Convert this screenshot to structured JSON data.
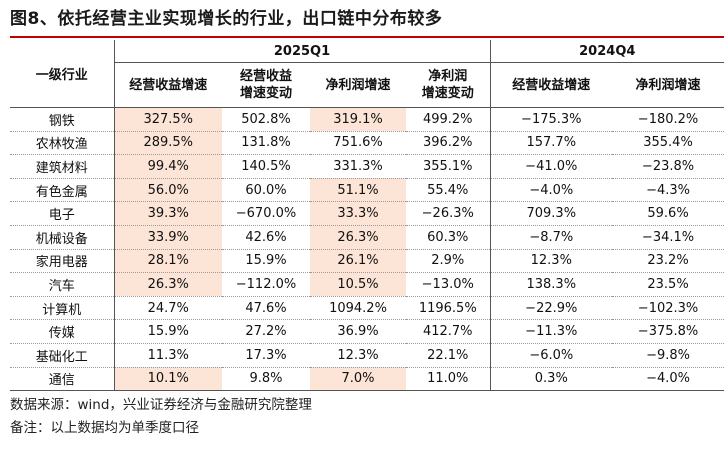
{
  "title": "图8、依托经营主业实现增长的行业，出口链中分布较多",
  "table": {
    "industry_header": "一级行业",
    "periods": [
      "2025Q1",
      "2024Q4"
    ],
    "columns_2025q1": [
      "经营收益增速",
      "经营收益增速变动",
      "净利润增速",
      "净利润增速变动"
    ],
    "columns_2025q1_lines": [
      [
        "经营收益增速"
      ],
      [
        "经营收益",
        "增速变动"
      ],
      [
        "净利润增速"
      ],
      [
        "净利润",
        "增速变动"
      ]
    ],
    "columns_2024q4": [
      "经营收益增速",
      "净利润增速"
    ],
    "highlight_color": "#fce4d6",
    "rows": [
      {
        "industry": "钢铁",
        "q1_rev": "327.5%",
        "q1_rev_chg": "502.8%",
        "q1_np": "319.1%",
        "q1_np_chg": "499.2%",
        "q4_rev": "−175.3%",
        "q4_np": "−180.2%",
        "hl_rev": true,
        "hl_np": true
      },
      {
        "industry": "农林牧渔",
        "q1_rev": "289.5%",
        "q1_rev_chg": "131.8%",
        "q1_np": "751.6%",
        "q1_np_chg": "396.2%",
        "q4_rev": "157.7%",
        "q4_np": "355.4%",
        "hl_rev": true,
        "hl_np": false
      },
      {
        "industry": "建筑材料",
        "q1_rev": "99.4%",
        "q1_rev_chg": "140.5%",
        "q1_np": "331.3%",
        "q1_np_chg": "355.1%",
        "q4_rev": "−41.0%",
        "q4_np": "−23.8%",
        "hl_rev": true,
        "hl_np": false
      },
      {
        "industry": "有色金属",
        "q1_rev": "56.0%",
        "q1_rev_chg": "60.0%",
        "q1_np": "51.1%",
        "q1_np_chg": "55.4%",
        "q4_rev": "−4.0%",
        "q4_np": "−4.3%",
        "hl_rev": true,
        "hl_np": true
      },
      {
        "industry": "电子",
        "q1_rev": "39.3%",
        "q1_rev_chg": "−670.0%",
        "q1_np": "33.3%",
        "q1_np_chg": "−26.3%",
        "q4_rev": "709.3%",
        "q4_np": "59.6%",
        "hl_rev": true,
        "hl_np": true
      },
      {
        "industry": "机械设备",
        "q1_rev": "33.9%",
        "q1_rev_chg": "42.6%",
        "q1_np": "26.3%",
        "q1_np_chg": "60.3%",
        "q4_rev": "−8.7%",
        "q4_np": "−34.1%",
        "hl_rev": true,
        "hl_np": true
      },
      {
        "industry": "家用电器",
        "q1_rev": "28.1%",
        "q1_rev_chg": "15.9%",
        "q1_np": "26.1%",
        "q1_np_chg": "2.9%",
        "q4_rev": "12.3%",
        "q4_np": "23.2%",
        "hl_rev": true,
        "hl_np": true
      },
      {
        "industry": "汽车",
        "q1_rev": "26.3%",
        "q1_rev_chg": "−112.0%",
        "q1_np": "10.5%",
        "q1_np_chg": "−13.0%",
        "q4_rev": "138.3%",
        "q4_np": "23.5%",
        "hl_rev": true,
        "hl_np": true
      },
      {
        "industry": "计算机",
        "q1_rev": "24.7%",
        "q1_rev_chg": "47.6%",
        "q1_np": "1094.2%",
        "q1_np_chg": "1196.5%",
        "q4_rev": "−22.9%",
        "q4_np": "−102.3%",
        "hl_rev": false,
        "hl_np": false
      },
      {
        "industry": "传媒",
        "q1_rev": "15.9%",
        "q1_rev_chg": "27.2%",
        "q1_np": "36.9%",
        "q1_np_chg": "412.7%",
        "q4_rev": "−11.3%",
        "q4_np": "−375.8%",
        "hl_rev": false,
        "hl_np": false
      },
      {
        "industry": "基础化工",
        "q1_rev": "11.3%",
        "q1_rev_chg": "17.3%",
        "q1_np": "12.3%",
        "q1_np_chg": "22.1%",
        "q4_rev": "−6.0%",
        "q4_np": "−9.8%",
        "hl_rev": false,
        "hl_np": false
      },
      {
        "industry": "通信",
        "q1_rev": "10.1%",
        "q1_rev_chg": "9.8%",
        "q1_np": "7.0%",
        "q1_np_chg": "11.0%",
        "q4_rev": "0.3%",
        "q4_np": "−4.0%",
        "hl_rev": true,
        "hl_np": true
      }
    ]
  },
  "footnotes": {
    "source": "数据来源：wind，兴业证券经济与金融研究院整理",
    "note": "备注：以上数据均为单季度口径"
  }
}
